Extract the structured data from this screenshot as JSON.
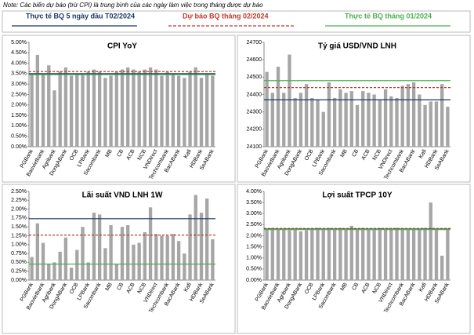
{
  "note": "Note: Các biến dự báo (trừ CPI) là trung bình của các ngày làm việc trong tháng được dự báo",
  "legend": [
    {
      "label": "Thực tế BQ 5 ngày đầu T02/2024",
      "color": "#1f3864",
      "dash": false
    },
    {
      "label": "Dự báo BQ tháng 02/2024",
      "color": "#c0392b",
      "dash": true
    },
    {
      "label": "Thực tế BQ tháng 01/2024",
      "color": "#4caf50",
      "dash": false
    }
  ],
  "chart_data": [
    {
      "type": "bar",
      "title": "CPI YoY",
      "color": "#a6a6a6",
      "categories": [
        "PGBank",
        null,
        "Baovietbank",
        null,
        "Agribank",
        null,
        "DongABank",
        null,
        "OCB",
        null,
        "LPBank",
        null,
        "Sacombank",
        null,
        "MB",
        null,
        "CB",
        null,
        "ACB",
        null,
        "NCB",
        null,
        "VNDirect",
        null,
        "Techcombank",
        null,
        "BacABank",
        null,
        "Kafi",
        null,
        "HDBank",
        null,
        "SeABank"
      ],
      "values": [
        3.5,
        4.4,
        3.5,
        3.9,
        2.7,
        3.6,
        3.8,
        3.4,
        3.5,
        3.5,
        3.6,
        3.7,
        3.6,
        3.3,
        3.4,
        3.6,
        3.7,
        3.8,
        3.7,
        3.6,
        3.7,
        3.8,
        3.7,
        3.4,
        3.6,
        3.5,
        3.4,
        3.3,
        3.6,
        3.8,
        3.3,
        3.5,
        3.4
      ],
      "ref_lines": [
        3.5,
        3.6,
        3.45
      ],
      "ylim": [
        0,
        5
      ],
      "yticks": [
        {
          "value": 0,
          "label": "0.00%"
        },
        {
          "value": 0.5,
          "label": "0.50%"
        },
        {
          "value": 1,
          "label": "1.00%"
        },
        {
          "value": 1.5,
          "label": "1.50%"
        },
        {
          "value": 2,
          "label": "2.00%"
        },
        {
          "value": 2.5,
          "label": "2.50%"
        },
        {
          "value": 3,
          "label": "3.00%"
        },
        {
          "value": 3.5,
          "label": "3.50%"
        },
        {
          "value": 4,
          "label": "4.00%"
        },
        {
          "value": 4.5,
          "label": "4.50%"
        },
        {
          "value": 5,
          "label": "5.00%"
        }
      ]
    },
    {
      "type": "bar",
      "title": "Tỷ giá USD/VND LNH",
      "color": "#a6a6a6",
      "categories": [
        "PGBank",
        null,
        "Baovietbank",
        null,
        "Agribank",
        null,
        "DongABank",
        null,
        "OCB",
        null,
        "LPBank",
        null,
        "Sacombank",
        null,
        "MB",
        null,
        "CB",
        null,
        "ACB",
        null,
        "NCB",
        null,
        "VNDirect",
        null,
        "Techcombank",
        null,
        "BacABank",
        null,
        "Kafi",
        null,
        "HDBank",
        null,
        "SeABank"
      ],
      "values": [
        24530,
        24410,
        24560,
        24410,
        24630,
        24380,
        24410,
        24460,
        24380,
        24370,
        24300,
        24470,
        24380,
        24430,
        24410,
        24420,
        24340,
        24420,
        24410,
        24400,
        24370,
        24430,
        24390,
        24380,
        24450,
        24460,
        24470,
        24400,
        24340,
        24360,
        24360,
        24460,
        24330
      ],
      "ref_lines": [
        24370,
        24440,
        24480
      ],
      "ylim": [
        24100,
        24700
      ],
      "yticks": [
        24100,
        24200,
        24300,
        24400,
        24500,
        24600,
        24700
      ]
    },
    {
      "type": "bar",
      "title": "Lãi suất VND LNH 1W",
      "color": "#a6a6a6",
      "categories": [
        "PGBank",
        null,
        "Baovietbank",
        null,
        "Agribank",
        null,
        "DongABank",
        null,
        "OCB",
        null,
        "LPBank",
        null,
        "Sacombank",
        null,
        "MB",
        null,
        "CB",
        null,
        "ACB",
        null,
        "NCB",
        null,
        "VNDirect",
        null,
        "Techcombank",
        null,
        "BacABank",
        null,
        "Kafi",
        null,
        "HDBank",
        null,
        "SeABank"
      ],
      "values": [
        0.65,
        1.6,
        1.05,
        0.45,
        0.5,
        0.8,
        1.2,
        0.35,
        0.85,
        1.5,
        0.5,
        1.9,
        1.85,
        0.9,
        1.55,
        0.45,
        1.5,
        1.55,
        1.0,
        1.05,
        1.35,
        2.05,
        1.3,
        1.25,
        1.25,
        1.3,
        1.1,
        0.75,
        1.85,
        2.4,
        1.9,
        2.3,
        1.15
      ],
      "ref_lines": [
        1.73,
        1.27,
        0.45
      ],
      "ylim": [
        0,
        2.5
      ],
      "yticks": [
        {
          "value": 0,
          "label": "0.00%"
        },
        {
          "value": 0.25,
          "label": "0.25%"
        },
        {
          "value": 0.5,
          "label": "0.50%"
        },
        {
          "value": 0.75,
          "label": "0.75%"
        },
        {
          "value": 1,
          "label": "1.00%"
        },
        {
          "value": 1.25,
          "label": "1.25%"
        },
        {
          "value": 1.5,
          "label": "1.50%"
        },
        {
          "value": 1.75,
          "label": "1.75%"
        },
        {
          "value": 2,
          "label": "2.00%"
        },
        {
          "value": 2.25,
          "label": "2.25%"
        },
        {
          "value": 2.5,
          "label": "2.50%"
        }
      ]
    },
    {
      "type": "bar",
      "title": "Lợi suất TPCP 10Y",
      "color": "#a6a6a6",
      "categories": [
        "PGBank",
        null,
        "Baovietbank",
        null,
        "Agribank",
        null,
        "DongABank",
        null,
        "OCB",
        null,
        "LPBank",
        null,
        "Sacombank",
        null,
        "MB",
        null,
        "CB",
        null,
        "ACB",
        null,
        "NCB",
        null,
        "VNDirect",
        null,
        "Techcombank",
        null,
        "BacABank",
        null,
        "Kafi",
        null,
        "HDBank",
        null,
        "SeABank"
      ],
      "values": [
        2.3,
        2.35,
        2.3,
        2.3,
        2.25,
        2.3,
        2.2,
        2.25,
        2.3,
        2.35,
        2.3,
        2.35,
        2.3,
        2.35,
        2.3,
        2.45,
        2.3,
        2.35,
        2.3,
        2.3,
        2.35,
        2.3,
        2.3,
        2.35,
        2.3,
        2.3,
        2.3,
        2.3,
        2.35,
        3.5,
        2.3,
        1.1,
        2.3
      ],
      "ref_lines": [
        2.3,
        2.33,
        2.28
      ],
      "ylim": [
        0,
        4
      ],
      "yticks": [
        {
          "value": 0,
          "label": "0.00%"
        },
        {
          "value": 0.5,
          "label": "0.50%"
        },
        {
          "value": 1,
          "label": "1.00%"
        },
        {
          "value": 1.5,
          "label": "1.50%"
        },
        {
          "value": 2,
          "label": "2.00%"
        },
        {
          "value": 2.5,
          "label": "2.50%"
        },
        {
          "value": 3,
          "label": "3.00%"
        },
        {
          "value": 3.5,
          "label": "3.50%"
        },
        {
          "value": 4,
          "label": "4.00%"
        }
      ]
    }
  ]
}
